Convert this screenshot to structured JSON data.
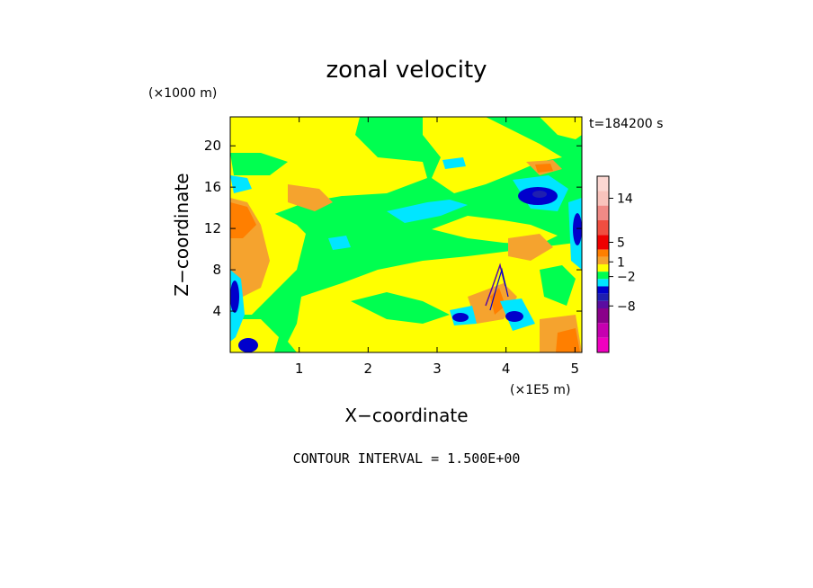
{
  "chart_data": {
    "type": "heatmap",
    "title": "zonal velocity",
    "xlabel": "X−coordinate",
    "ylabel": "Z−coordinate",
    "x_unit_label": "(×1E5 m)",
    "y_unit_label": "(×1000 m)",
    "time_label": "t=184200 s",
    "footer": "CONTOUR INTERVAL = 1.500E+00",
    "xlim": [
      0,
      5.1
    ],
    "ylim": [
      0,
      22.8
    ],
    "x_ticks": [
      "1",
      "2",
      "3",
      "4",
      "5"
    ],
    "x_tick_values": [
      1,
      2,
      3,
      4,
      5
    ],
    "y_ticks": [
      "4",
      "8",
      "12",
      "16",
      "20"
    ],
    "y_tick_values": [
      4,
      8,
      12,
      16,
      20
    ],
    "contour_interval": 1.5,
    "colorbar": {
      "levels": [
        {
          "upper": 18.5,
          "color": "#fcd7d2"
        },
        {
          "upper": 15.5,
          "color": "#f9c3bc"
        },
        {
          "upper": 12.5,
          "color": "#f08a86"
        },
        {
          "upper": 9.5,
          "color": "#f04e40"
        },
        {
          "upper": 6.5,
          "color": "#ee0000"
        },
        {
          "upper": 3.5,
          "color": "#ff7f00"
        },
        {
          "upper": 2.0,
          "color": "#f5a32e"
        },
        {
          "upper": 0.5,
          "color": "#ffff00"
        },
        {
          "upper": -1.0,
          "color": "#00ff50"
        },
        {
          "upper": -2.5,
          "color": "#00e6ff"
        },
        {
          "upper": -4.0,
          "color": "#0000cc"
        },
        {
          "upper": -5.5,
          "color": "#1f1fb0"
        },
        {
          "upper": -7.0,
          "color": "#5a0ca0"
        },
        {
          "upper": -8.5,
          "color": "#8a008a"
        },
        {
          "upper": -11.5,
          "color": "#c600b0"
        },
        {
          "upper": -14.5,
          "color": "#f000c0"
        }
      ],
      "tick_labels": [
        "14",
        "5",
        "1",
        "−2",
        "−8"
      ],
      "tick_values": [
        14,
        5,
        1,
        -2,
        -8
      ]
    }
  }
}
